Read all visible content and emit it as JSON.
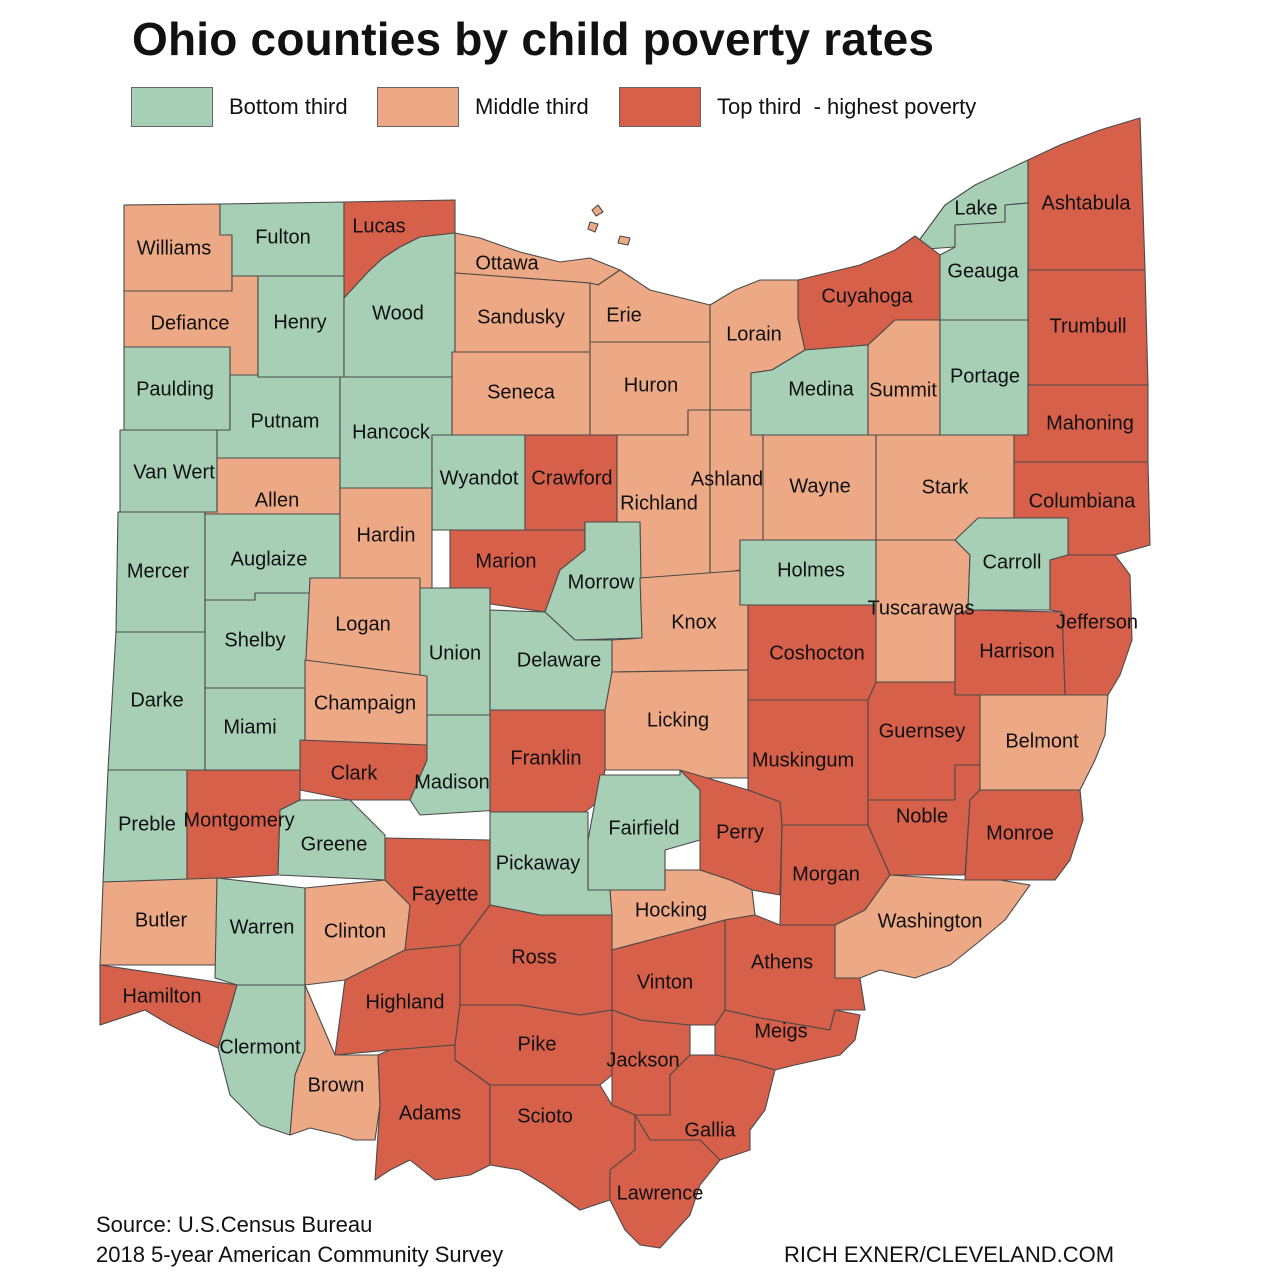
{
  "title": "Ohio counties by child poverty rates",
  "legend": [
    {
      "key": "bottom",
      "label": "Bottom third",
      "color": "#a7cfb6"
    },
    {
      "key": "middle",
      "label": "Middle third",
      "color": "#eda985"
    },
    {
      "key": "top",
      "label": "Top third  - highest poverty",
      "color": "#d7604a"
    }
  ],
  "counties": [
    {
      "name": "Williams",
      "tier": "middle"
    },
    {
      "name": "Fulton",
      "tier": "bottom"
    },
    {
      "name": "Lucas",
      "tier": "top"
    },
    {
      "name": "Ottawa",
      "tier": "middle"
    },
    {
      "name": "Lake",
      "tier": "bottom"
    },
    {
      "name": "Ashtabula",
      "tier": "top"
    },
    {
      "name": "Defiance",
      "tier": "middle"
    },
    {
      "name": "Henry",
      "tier": "bottom"
    },
    {
      "name": "Wood",
      "tier": "bottom"
    },
    {
      "name": "Sandusky",
      "tier": "middle"
    },
    {
      "name": "Erie",
      "tier": "middle"
    },
    {
      "name": "Lorain",
      "tier": "middle"
    },
    {
      "name": "Cuyahoga",
      "tier": "top"
    },
    {
      "name": "Geauga",
      "tier": "bottom"
    },
    {
      "name": "Trumbull",
      "tier": "top"
    },
    {
      "name": "Paulding",
      "tier": "bottom"
    },
    {
      "name": "Putnam",
      "tier": "bottom"
    },
    {
      "name": "Hancock",
      "tier": "bottom"
    },
    {
      "name": "Seneca",
      "tier": "middle"
    },
    {
      "name": "Huron",
      "tier": "middle"
    },
    {
      "name": "Medina",
      "tier": "bottom"
    },
    {
      "name": "Summit",
      "tier": "middle"
    },
    {
      "name": "Portage",
      "tier": "bottom"
    },
    {
      "name": "Mahoning",
      "tier": "top"
    },
    {
      "name": "Van Wert",
      "tier": "bottom"
    },
    {
      "name": "Allen",
      "tier": "middle"
    },
    {
      "name": "Wyandot",
      "tier": "bottom"
    },
    {
      "name": "Crawford",
      "tier": "top"
    },
    {
      "name": "Richland",
      "tier": "middle"
    },
    {
      "name": "Ashland",
      "tier": "middle"
    },
    {
      "name": "Wayne",
      "tier": "middle"
    },
    {
      "name": "Stark",
      "tier": "middle"
    },
    {
      "name": "Columbiana",
      "tier": "top"
    },
    {
      "name": "Mercer",
      "tier": "bottom"
    },
    {
      "name": "Auglaize",
      "tier": "bottom"
    },
    {
      "name": "Hardin",
      "tier": "middle"
    },
    {
      "name": "Marion",
      "tier": "top"
    },
    {
      "name": "Morrow",
      "tier": "bottom"
    },
    {
      "name": "Knox",
      "tier": "middle"
    },
    {
      "name": "Holmes",
      "tier": "bottom"
    },
    {
      "name": "Tuscarawas",
      "tier": "middle"
    },
    {
      "name": "Carroll",
      "tier": "bottom"
    },
    {
      "name": "Jefferson",
      "tier": "top"
    },
    {
      "name": "Harrison",
      "tier": "top"
    },
    {
      "name": "Shelby",
      "tier": "bottom"
    },
    {
      "name": "Logan",
      "tier": "middle"
    },
    {
      "name": "Union",
      "tier": "bottom"
    },
    {
      "name": "Delaware",
      "tier": "bottom"
    },
    {
      "name": "Coshocton",
      "tier": "top"
    },
    {
      "name": "Darke",
      "tier": "bottom"
    },
    {
      "name": "Miami",
      "tier": "bottom"
    },
    {
      "name": "Champaign",
      "tier": "middle"
    },
    {
      "name": "Licking",
      "tier": "middle"
    },
    {
      "name": "Guernsey",
      "tier": "top"
    },
    {
      "name": "Belmont",
      "tier": "middle"
    },
    {
      "name": "Clark",
      "tier": "top"
    },
    {
      "name": "Madison",
      "tier": "bottom"
    },
    {
      "name": "Franklin",
      "tier": "top"
    },
    {
      "name": "Muskingum",
      "tier": "top"
    },
    {
      "name": "Preble",
      "tier": "bottom"
    },
    {
      "name": "Montgomery",
      "tier": "top"
    },
    {
      "name": "Greene",
      "tier": "bottom"
    },
    {
      "name": "Fairfield",
      "tier": "bottom"
    },
    {
      "name": "Perry",
      "tier": "top"
    },
    {
      "name": "Noble",
      "tier": "top"
    },
    {
      "name": "Monroe",
      "tier": "top"
    },
    {
      "name": "Pickaway",
      "tier": "bottom"
    },
    {
      "name": "Morgan",
      "tier": "top"
    },
    {
      "name": "Butler",
      "tier": "middle"
    },
    {
      "name": "Warren",
      "tier": "bottom"
    },
    {
      "name": "Clinton",
      "tier": "middle"
    },
    {
      "name": "Fayette",
      "tier": "top"
    },
    {
      "name": "Hocking",
      "tier": "middle"
    },
    {
      "name": "Washington",
      "tier": "middle"
    },
    {
      "name": "Ross",
      "tier": "top"
    },
    {
      "name": "Athens",
      "tier": "top"
    },
    {
      "name": "Vinton",
      "tier": "top"
    },
    {
      "name": "Hamilton",
      "tier": "top"
    },
    {
      "name": "Highland",
      "tier": "top"
    },
    {
      "name": "Meigs",
      "tier": "top"
    },
    {
      "name": "Clermont",
      "tier": "bottom"
    },
    {
      "name": "Pike",
      "tier": "top"
    },
    {
      "name": "Jackson",
      "tier": "top"
    },
    {
      "name": "Brown",
      "tier": "middle"
    },
    {
      "name": "Adams",
      "tier": "top"
    },
    {
      "name": "Scioto",
      "tier": "top"
    },
    {
      "name": "Gallia",
      "tier": "top"
    },
    {
      "name": "Lawrence",
      "tier": "top"
    }
  ],
  "source_line1": "Source: U.S.Census Bureau",
  "source_line2": "2018 5-year American Community Survey",
  "credit": "RICH EXNER/CLEVELAND.COM"
}
